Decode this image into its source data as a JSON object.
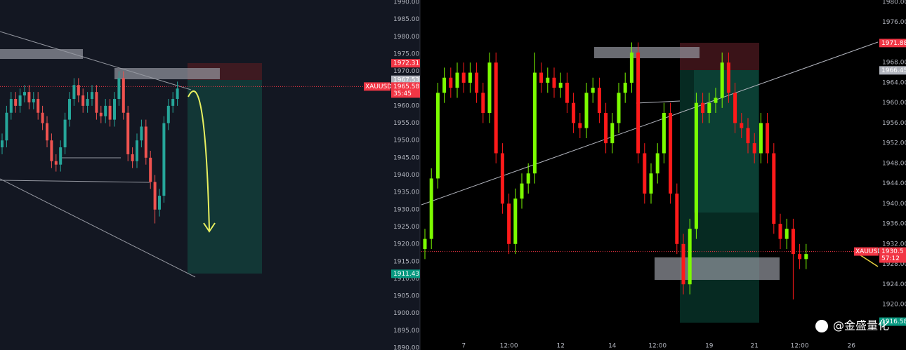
{
  "chart_data": [
    {
      "type": "candlestick",
      "up_color": "#26a69a",
      "down_color": "#ef5350",
      "grid": false,
      "ylim": [
        1889.4,
        1990.6
      ],
      "yticks": [
        {
          "value": 1890,
          "label": "1890.00"
        },
        {
          "value": 1895,
          "label": "1895.00"
        },
        {
          "value": 1900,
          "label": "1900.00"
        },
        {
          "value": 1905,
          "label": "1905.00"
        },
        {
          "value": 1910,
          "label": "1910.00"
        },
        {
          "value": 1915,
          "label": "1915.00"
        },
        {
          "value": 1920,
          "label": "1920.00"
        },
        {
          "value": 1925,
          "label": "1925.00"
        },
        {
          "value": 1930,
          "label": "1930.00"
        },
        {
          "value": 1935,
          "label": "1935.00"
        },
        {
          "value": 1940,
          "label": "1940.00"
        },
        {
          "value": 1945,
          "label": "1945.00"
        },
        {
          "value": 1950,
          "label": "1950.00"
        },
        {
          "value": 1955,
          "label": "1955.00"
        },
        {
          "value": 1960,
          "label": "1960.00"
        },
        {
          "value": 1965,
          "label": "1965.00"
        },
        {
          "value": 1970,
          "label": "1970.00"
        },
        {
          "value": 1975,
          "label": "1975.00"
        },
        {
          "value": 1980,
          "label": "1980.00"
        },
        {
          "value": 1985,
          "label": "1985.00"
        },
        {
          "value": 1990,
          "label": "1990.00"
        }
      ],
      "candles": [
        [
          1948,
          1952,
          1946,
          1950
        ],
        [
          1950,
          1960,
          1948,
          1958
        ],
        [
          1958,
          1964,
          1956,
          1962
        ],
        [
          1962,
          1964,
          1958,
          1960
        ],
        [
          1960,
          1965,
          1958,
          1963
        ],
        [
          1963,
          1966,
          1961,
          1964
        ],
        [
          1964,
          1966,
          1959,
          1961
        ],
        [
          1961,
          1964,
          1959,
          1962
        ],
        [
          1962,
          1964,
          1956,
          1958
        ],
        [
          1958,
          1960,
          1953,
          1955
        ],
        [
          1955,
          1957,
          1948,
          1950
        ],
        [
          1950,
          1952,
          1942,
          1944
        ],
        [
          1944,
          1946,
          1941,
          1943
        ],
        [
          1943,
          1950,
          1941,
          1948
        ],
        [
          1948,
          1958,
          1946,
          1956
        ],
        [
          1956,
          1964,
          1954,
          1962
        ],
        [
          1962,
          1968,
          1960,
          1966
        ],
        [
          1966,
          1968,
          1961,
          1963
        ],
        [
          1963,
          1965,
          1958,
          1960
        ],
        [
          1960,
          1964,
          1958,
          1962
        ],
        [
          1962,
          1966,
          1960,
          1964
        ],
        [
          1964,
          1966,
          1956,
          1958
        ],
        [
          1958,
          1960,
          1955,
          1957
        ],
        [
          1957,
          1962,
          1955,
          1960
        ],
        [
          1960,
          1962,
          1954,
          1956
        ],
        [
          1956,
          1964,
          1954,
          1962
        ],
        [
          1962,
          1970,
          1960,
          1968
        ],
        [
          1968,
          1970,
          1956,
          1958
        ],
        [
          1958,
          1960,
          1944,
          1946
        ],
        [
          1946,
          1948,
          1942,
          1944
        ],
        [
          1944,
          1952,
          1942,
          1950
        ],
        [
          1950,
          1956,
          1948,
          1954
        ],
        [
          1954,
          1956,
          1943,
          1945
        ],
        [
          1945,
          1947,
          1936,
          1938
        ],
        [
          1938,
          1940,
          1926,
          1930
        ],
        [
          1930,
          1936,
          1928,
          1934
        ],
        [
          1934,
          1957,
          1932,
          1955
        ],
        [
          1955,
          1962,
          1953,
          1960
        ],
        [
          1960,
          1964,
          1958,
          1962
        ],
        [
          1962,
          1967,
          1960,
          1965
        ]
      ],
      "price_tags": [
        {
          "value": 1972.31,
          "color": "#f23645"
        },
        {
          "value": 1967.53,
          "color": "#b2b5be"
        },
        {
          "value": 1911.43,
          "color": "#089981"
        }
      ],
      "last_price": {
        "symbol": "XAUUSD",
        "value": 1965.58,
        "countdown": "35:45",
        "color": "#f23645"
      }
    },
    {
      "type": "candlestick",
      "up_color": "#7cfc00",
      "down_color": "#ff1a1a",
      "grid": false,
      "ylim": [
        1910.95,
        1980.42
      ],
      "yticks": [
        {
          "value": 1920,
          "label": "1920.00"
        },
        {
          "value": 1924,
          "label": "1924.00"
        },
        {
          "value": 1928,
          "label": "1928.00"
        },
        {
          "value": 1932,
          "label": "1932.00"
        },
        {
          "value": 1936,
          "label": "1936.00"
        },
        {
          "value": 1940,
          "label": "1940.00"
        },
        {
          "value": 1944,
          "label": "1944.00"
        },
        {
          "value": 1948,
          "label": "1948.00"
        },
        {
          "value": 1952,
          "label": "1952.00"
        },
        {
          "value": 1956,
          "label": "1956.00"
        },
        {
          "value": 1960,
          "label": "1960.00"
        },
        {
          "value": 1964,
          "label": "1964.00"
        },
        {
          "value": 1968,
          "label": "1968.00"
        },
        {
          "value": 1972,
          "label": "1972.00"
        },
        {
          "value": 1976,
          "label": "1976.00"
        },
        {
          "value": 1980,
          "label": "1980.00"
        }
      ],
      "x": [
        null,
        null,
        null,
        null,
        null,
        null,
        "7",
        null,
        null,
        null,
        null,
        null,
        null,
        "12:00",
        null,
        null,
        null,
        null,
        null,
        null,
        null,
        "12",
        null,
        null,
        null,
        null,
        null,
        null,
        null,
        "14",
        null,
        null,
        null,
        null,
        null,
        null,
        "12:00",
        null,
        null,
        null,
        null,
        null,
        null,
        null,
        "19",
        null,
        null,
        null,
        null,
        null,
        null,
        "21",
        null,
        null,
        null,
        null,
        null,
        null,
        "12:00",
        null,
        null,
        null,
        null,
        null,
        null,
        null,
        "26",
        null
      ],
      "candles": [
        [
          1931,
          1935,
          1929,
          1933
        ],
        [
          1933,
          1947,
          1931,
          1945
        ],
        [
          1945,
          1964,
          1943,
          1962
        ],
        [
          1962,
          1967,
          1960,
          1965
        ],
        [
          1965,
          1967,
          1961,
          1963
        ],
        [
          1963,
          1968,
          1961,
          1966
        ],
        [
          1966,
          1968,
          1962,
          1964
        ],
        [
          1964,
          1968,
          1962,
          1966
        ],
        [
          1966,
          1968,
          1960,
          1962
        ],
        [
          1962,
          1964,
          1956,
          1958
        ],
        [
          1958,
          1970,
          1956,
          1968
        ],
        [
          1968,
          1970,
          1948,
          1950
        ],
        [
          1950,
          1952,
          1938,
          1940
        ],
        [
          1940,
          1942,
          1930,
          1932
        ],
        [
          1932,
          1943,
          1930,
          1941
        ],
        [
          1941,
          1946,
          1939,
          1944
        ],
        [
          1944,
          1948,
          1942,
          1946
        ],
        [
          1946,
          1970,
          1944,
          1966
        ],
        [
          1966,
          1968,
          1962,
          1964
        ],
        [
          1964,
          1967,
          1962,
          1965
        ],
        [
          1965,
          1967,
          1961,
          1963
        ],
        [
          1963,
          1966,
          1961,
          1964
        ],
        [
          1964,
          1966,
          1958,
          1960
        ],
        [
          1960,
          1962,
          1954,
          1956
        ],
        [
          1956,
          1958,
          1953,
          1955
        ],
        [
          1955,
          1964,
          1953,
          1962
        ],
        [
          1962,
          1965,
          1960,
          1963
        ],
        [
          1963,
          1965,
          1956,
          1958
        ],
        [
          1958,
          1960,
          1950,
          1952
        ],
        [
          1952,
          1958,
          1950,
          1956
        ],
        [
          1956,
          1964,
          1954,
          1962
        ],
        [
          1962,
          1966,
          1960,
          1964
        ],
        [
          1964,
          1972,
          1962,
          1970
        ],
        [
          1970,
          1972,
          1948,
          1950
        ],
        [
          1950,
          1952,
          1940,
          1942
        ],
        [
          1942,
          1948,
          1940,
          1946
        ],
        [
          1946,
          1952,
          1944,
          1950
        ],
        [
          1950,
          1960,
          1948,
          1958
        ],
        [
          1958,
          1960,
          1940,
          1942
        ],
        [
          1942,
          1944,
          1930,
          1932
        ],
        [
          1932,
          1934,
          1922,
          1924
        ],
        [
          1924,
          1937,
          1922,
          1935
        ],
        [
          1935,
          1962,
          1933,
          1960
        ],
        [
          1960,
          1962,
          1956,
          1958
        ],
        [
          1958,
          1962,
          1956,
          1960
        ],
        [
          1960,
          1963,
          1958,
          1961
        ],
        [
          1961,
          1970,
          1959,
          1968
        ],
        [
          1968,
          1970,
          1960,
          1962
        ],
        [
          1962,
          1964,
          1954,
          1956
        ],
        [
          1956,
          1958,
          1953,
          1955
        ],
        [
          1955,
          1957,
          1950,
          1952
        ],
        [
          1952,
          1954,
          1948,
          1950
        ],
        [
          1950,
          1958,
          1948,
          1956
        ],
        [
          1956,
          1958,
          1948,
          1950
        ],
        [
          1950,
          1952,
          1934,
          1936
        ],
        [
          1936,
          1938,
          1931,
          1933
        ],
        [
          1933,
          1937,
          1931,
          1935
        ],
        [
          1935,
          1937,
          1921,
          1930
        ],
        [
          1930,
          1932,
          1927,
          1929
        ],
        [
          1929,
          1932,
          1927,
          1930
        ],
        null,
        null,
        null,
        null,
        null,
        null,
        null,
        null
      ],
      "price_tags": [
        {
          "value": 1971.88,
          "color": "#f23645"
        },
        {
          "value": 1966.45,
          "color": "#b2b5be"
        },
        {
          "value": 1916.58,
          "color": "#089981"
        }
      ],
      "last_price": {
        "symbol": "XAUUSD",
        "value": 1930.5,
        "countdown": "57:12",
        "color": "#f23645"
      }
    }
  ],
  "watermark": "@金盛量化"
}
